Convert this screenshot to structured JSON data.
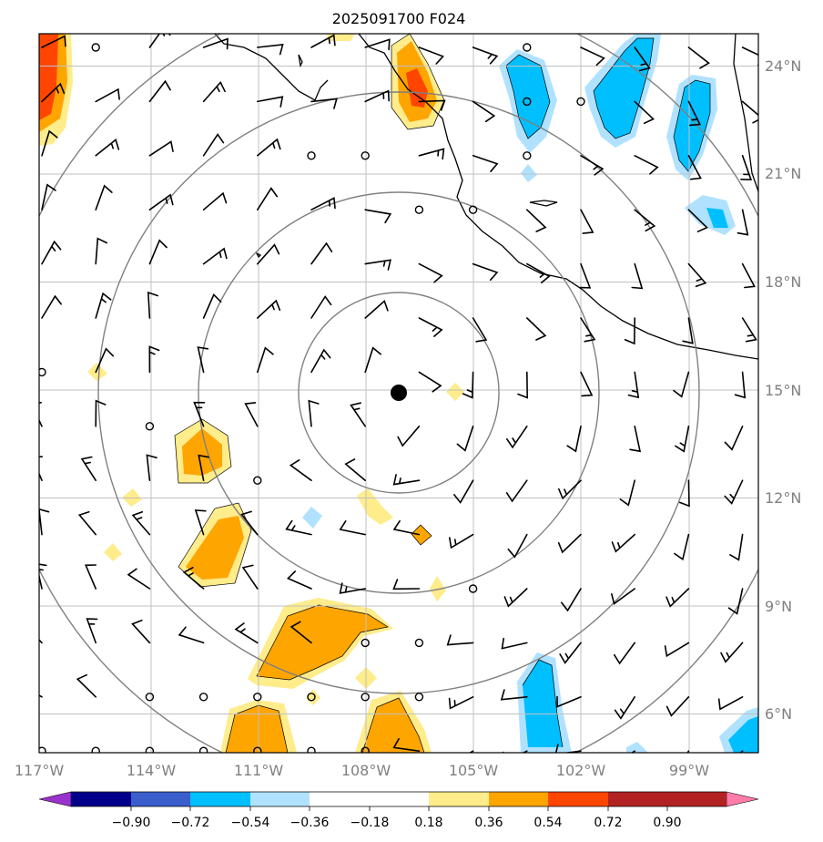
{
  "title": "2025091700 F024",
  "map": {
    "lat_labels": [
      "24°N",
      "21°N",
      "18°N",
      "15°N",
      "12°N",
      "9°N",
      "6°N"
    ],
    "lon_labels": [
      "117°W",
      "114°W",
      "111°W",
      "108°W",
      "105°W",
      "102°W",
      "99°W"
    ],
    "lat_values": [
      24,
      21,
      18,
      15,
      12,
      9,
      6
    ],
    "lon_values": [
      -117,
      -114,
      -111,
      -108,
      -105,
      -102,
      -99
    ],
    "extent": {
      "lon_min": -117,
      "lon_max": -97,
      "lat_min": 5,
      "lat_max": 25
    },
    "center": {
      "lon": -107.1,
      "lat": 14.9
    },
    "range_ring_count": 4
  },
  "colorbar": {
    "ticks": [
      "−0.90",
      "−0.72",
      "−0.54",
      "−0.36",
      "−0.18",
      "0.18",
      "0.36",
      "0.54",
      "0.72",
      "0.90"
    ],
    "colors": [
      "#9932cc",
      "#00008b",
      "#3a5fcd",
      "#00bfff",
      "#b0e2ff",
      "#ffffff",
      "#ffec8b",
      "#ffa500",
      "#ff4500",
      "#b22222",
      "#ff7ca8"
    ],
    "extend": "both"
  },
  "colors": {
    "grid": "#c0c0c0",
    "ring": "#808080",
    "coast": "#000000",
    "center_marker": "#000000"
  }
}
